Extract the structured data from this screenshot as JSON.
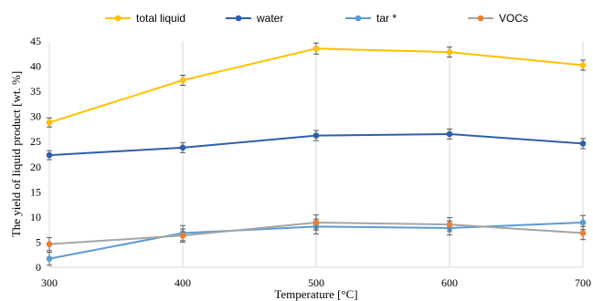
{
  "chart_data": {
    "type": "line",
    "xlabel": "Temperature [°C]",
    "ylabel": "The yield of liquid product [wt. %]",
    "x": [
      300,
      400,
      500,
      600,
      700
    ],
    "xticks": [
      "300",
      "400",
      "500",
      "600",
      "700"
    ],
    "ylim": [
      0,
      45
    ],
    "yticks": [
      "0",
      "5",
      "10",
      "15",
      "20",
      "25",
      "30",
      "35",
      "40",
      "45"
    ],
    "grid": "vertical",
    "legend_position": "top",
    "legend": [
      "total liquid",
      "water",
      "tar *",
      "VOCs"
    ],
    "series": [
      {
        "name": "total liquid",
        "color": "#FFC000",
        "values": [
          28.8,
          37.2,
          43.5,
          42.8,
          40.2
        ],
        "errors": [
          0.9,
          1.0,
          1.1,
          1.0,
          1.0
        ]
      },
      {
        "name": "water",
        "color": "#2E5FAC",
        "values": [
          22.3,
          23.8,
          26.2,
          26.5,
          24.6
        ],
        "errors": [
          0.9,
          1.0,
          1.0,
          1.0,
          1.0
        ]
      },
      {
        "name": "tar *",
        "color": "#5B9BD5",
        "values": [
          1.7,
          6.8,
          8.1,
          7.8,
          8.9
        ],
        "errors": [
          1.3,
          1.5,
          1.5,
          1.4,
          1.4
        ]
      },
      {
        "name": "VOCs",
        "color": "#ED7D31",
        "line_color": "#A5A5A5",
        "values": [
          4.6,
          6.3,
          8.9,
          8.5,
          6.8
        ],
        "errors": [
          1.3,
          1.3,
          1.5,
          1.4,
          1.3
        ]
      }
    ]
  }
}
